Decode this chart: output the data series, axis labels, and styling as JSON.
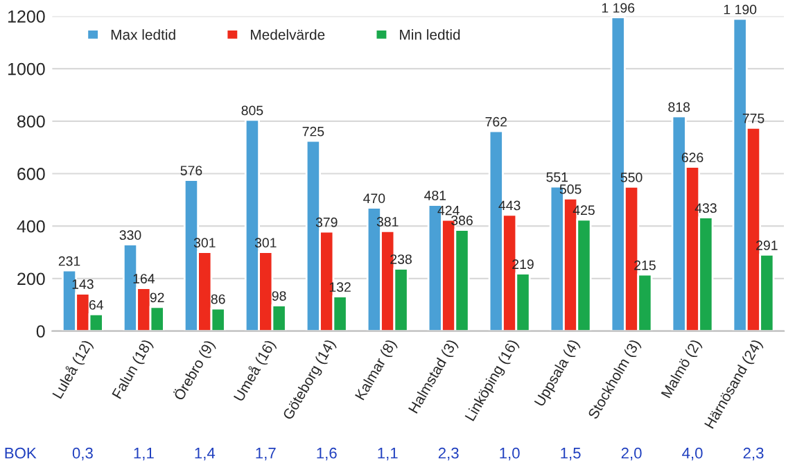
{
  "chart_data": {
    "type": "bar",
    "categories": [
      "Luleå (12)",
      "Falun (18)",
      "Örebro (9)",
      "Umeå (16)",
      "Göteborg (14)",
      "Kalmar (8)",
      "Halmstad (3)",
      "Linköping (16)",
      "Uppsala (4)",
      "Stockholm (3)",
      "Malmö (2)",
      "Härnösand (24)"
    ],
    "series": [
      {
        "name": "Max ledtid",
        "color": "#4aa0d6",
        "values": [
          231,
          330,
          576,
          805,
          725,
          470,
          481,
          762,
          551,
          1196,
          818,
          1190
        ],
        "value_labels": [
          "231",
          "330",
          "576",
          "805",
          "725",
          "470",
          "481",
          "762",
          "551",
          "1 196",
          "818",
          "1 190"
        ]
      },
      {
        "name": "Medelvärde",
        "color": "#ee2b1c",
        "values": [
          143,
          164,
          301,
          301,
          379,
          381,
          424,
          443,
          505,
          550,
          626,
          775
        ],
        "value_labels": [
          "143",
          "164",
          "301",
          "301",
          "379",
          "381",
          "424",
          "443",
          "505",
          "550",
          "626",
          "775"
        ]
      },
      {
        "name": "Min ledtid",
        "color": "#1aa84c",
        "values": [
          64,
          92,
          86,
          98,
          132,
          238,
          386,
          219,
          425,
          215,
          433,
          291
        ],
        "value_labels": [
          "64",
          "92",
          "86",
          "98",
          "132",
          "238",
          "386",
          "219",
          "425",
          "215",
          "433",
          "291"
        ]
      }
    ],
    "ylim": [
      0,
      1200
    ],
    "yticks": [
      0,
      200,
      400,
      600,
      800,
      1000,
      1200
    ],
    "grid": "y",
    "legend": "top left",
    "annotations": [
      "BOK",
      "0,3",
      "1,1",
      "1,4",
      "1,7",
      "1,6",
      "1,1",
      "2,3",
      "1,0",
      "1,5",
      "2,0",
      "4,0",
      "2,3"
    ]
  }
}
